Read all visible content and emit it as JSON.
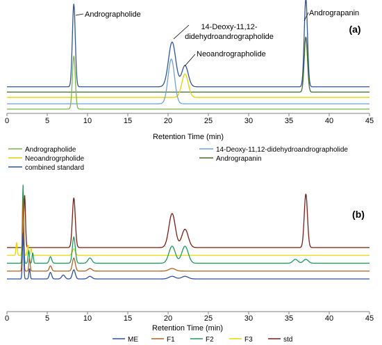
{
  "chart_data": [
    {
      "type": "line",
      "panel_label": "(a)",
      "xlabel": "Retention Time (min)",
      "xlim": [
        0,
        45
      ],
      "xticks": [
        0,
        5,
        10,
        15,
        20,
        25,
        30,
        35,
        40,
        45
      ],
      "annotations": [
        {
          "text_lines": [
            "Andrographolide"
          ],
          "x": 8.3
        },
        {
          "text_lines": [
            "14-Deoxy-11,12-",
            "didehydroandrographolide"
          ],
          "x": 20.4
        },
        {
          "text_lines": [
            "Neoandrographolide"
          ],
          "x": 22.1
        },
        {
          "text_lines": [
            "Andrograpanin"
          ],
          "x": 37.1
        }
      ],
      "legend": [
        {
          "name": "Andrographolide",
          "color": "#7ab648"
        },
        {
          "name": "14-Deoxy-11,12-didehydroandrographolide",
          "color": "#6fa0dc"
        },
        {
          "name": "Neoandrogrpholide",
          "color": "#e0d400"
        },
        {
          "name": "Andrograpanin",
          "color": "#3d6e2a"
        },
        {
          "name": "combined standard",
          "color": "#2f5597"
        }
      ],
      "series": [
        {
          "name": "combined standard",
          "color": "#2f5597",
          "baseline": 0.25,
          "peaks": [
            [
              8.3,
              0.78,
              0.18
            ],
            [
              20.5,
              0.42,
              0.45
            ],
            [
              22.1,
              0.2,
              0.4
            ],
            [
              37.1,
              0.83,
              0.2
            ]
          ]
        },
        {
          "name": "Andrograpanin",
          "color": "#3d6e2a",
          "baseline": 0.2,
          "peaks": [
            [
              37.1,
              0.52,
              0.2
            ]
          ]
        },
        {
          "name": "Neoandrogrpholide",
          "color": "#e0d400",
          "baseline": 0.15,
          "peaks": [
            [
              22.1,
              0.22,
              0.4
            ]
          ]
        },
        {
          "name": "14-Deoxy-11,12-didehydroandrographolide",
          "color": "#6fa0dc",
          "baseline": 0.09,
          "peaks": [
            [
              20.4,
              0.42,
              0.4
            ]
          ]
        },
        {
          "name": "Andrographolide",
          "color": "#7ab648",
          "baseline": 0.04,
          "peaks": [
            [
              8.3,
              0.5,
              0.18
            ]
          ]
        }
      ]
    },
    {
      "type": "line",
      "panel_label": "(b)",
      "xlabel": "Retention Time (min)",
      "xlim": [
        0,
        45
      ],
      "xticks": [
        0,
        5,
        10,
        15,
        20,
        25,
        30,
        35,
        40,
        45
      ],
      "legend": [
        {
          "name": "ME",
          "color": "#2e4fa8"
        },
        {
          "name": "F1",
          "color": "#b0621f"
        },
        {
          "name": "F2",
          "color": "#1f9a5a"
        },
        {
          "name": "F3",
          "color": "#e8d800"
        },
        {
          "name": "std",
          "color": "#7b1d12"
        }
      ],
      "series": [
        {
          "name": "std",
          "color": "#7b1d12",
          "baseline": 0.49,
          "peaks": [
            [
              2.2,
              0.4,
              0.1
            ],
            [
              8.3,
              0.38,
              0.18
            ],
            [
              20.5,
              0.26,
              0.4
            ],
            [
              22.1,
              0.14,
              0.4
            ],
            [
              37.1,
              0.41,
              0.2
            ]
          ]
        },
        {
          "name": "F3",
          "color": "#e8d800",
          "baseline": 0.43,
          "peaks": [
            [
              1.2,
              0.1,
              0.08
            ],
            [
              2.0,
              0.5,
              0.08
            ],
            [
              2.6,
              0.08,
              0.08
            ],
            [
              3.0,
              0.05,
              0.08
            ],
            [
              8.3,
              0.05,
              0.18
            ]
          ]
        },
        {
          "name": "F2",
          "color": "#1f9a5a",
          "baseline": 0.37,
          "peaks": [
            [
              2.0,
              0.6,
              0.08
            ],
            [
              2.7,
              0.1,
              0.08
            ],
            [
              3.2,
              0.08,
              0.08
            ],
            [
              5.4,
              0.05,
              0.15
            ],
            [
              8.3,
              0.2,
              0.18
            ],
            [
              10.3,
              0.04,
              0.25
            ],
            [
              20.5,
              0.13,
              0.4
            ],
            [
              22.1,
              0.13,
              0.4
            ],
            [
              35.8,
              0.03,
              0.3
            ],
            [
              37.1,
              0.03,
              0.3
            ]
          ]
        },
        {
          "name": "F1",
          "color": "#b0621f",
          "baseline": 0.31,
          "peaks": [
            [
              2.0,
              0.55,
              0.08
            ],
            [
              2.8,
              0.1,
              0.08
            ],
            [
              5.4,
              0.04,
              0.15
            ],
            [
              8.3,
              0.1,
              0.18
            ],
            [
              10.3,
              0.02,
              0.25
            ],
            [
              20.5,
              0.02,
              0.4
            ]
          ]
        },
        {
          "name": "ME",
          "color": "#2e4fa8",
          "baseline": 0.25,
          "peaks": [
            [
              2.0,
              0.35,
              0.08
            ],
            [
              2.8,
              0.08,
              0.08
            ],
            [
              5.4,
              0.05,
              0.15
            ],
            [
              7.0,
              0.03,
              0.2
            ],
            [
              8.3,
              0.07,
              0.18
            ],
            [
              10.3,
              0.02,
              0.25
            ],
            [
              20.5,
              0.02,
              0.4
            ],
            [
              22.1,
              0.02,
              0.4
            ]
          ]
        }
      ]
    }
  ]
}
